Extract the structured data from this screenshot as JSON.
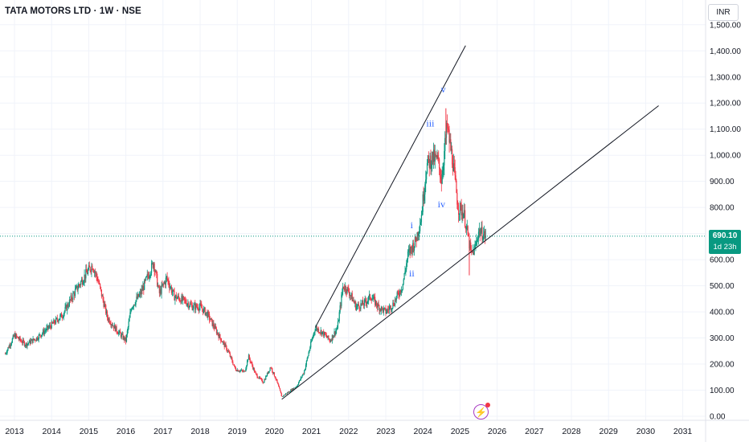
{
  "header": {
    "title": "TATA MOTORS LTD · 1W · NSE",
    "currency": "INR"
  },
  "price_tag": {
    "price": "690.10",
    "countdown": "1d 23h",
    "color": "#089981"
  },
  "colors": {
    "up": "#089981",
    "down": "#f23645",
    "wave_label": "#2962ff",
    "trendline": "#131722",
    "grid": "#f0f3fa",
    "axis_text": "#131722"
  },
  "icons": {
    "flash": "lightning-bolt-icon"
  },
  "chart_data": {
    "type": "candlestick",
    "title": "TATA MOTORS LTD · 1W · NSE",
    "xlabel": "",
    "ylabel": "",
    "y_unit": "INR",
    "ylim": [
      0,
      1550
    ],
    "xlim": [
      2012.75,
      2031.7
    ],
    "grid": true,
    "y_ticks": [
      "0.00",
      "100.00",
      "200.00",
      "300.00",
      "400.00",
      "500.00",
      "600.00",
      "700.00",
      "800.00",
      "900.00",
      "1,000.00",
      "1,100.00",
      "1,200.00",
      "1,300.00",
      "1,400.00",
      "1,500.00"
    ],
    "y_tick_values": [
      0,
      100,
      200,
      300,
      400,
      500,
      600,
      700,
      800,
      900,
      1000,
      1100,
      1200,
      1300,
      1400,
      1500
    ],
    "x_ticks": [
      "2013",
      "2014",
      "2015",
      "2016",
      "2017",
      "2018",
      "2019",
      "2020",
      "2021",
      "2022",
      "2023",
      "2024",
      "2025",
      "2026",
      "2027",
      "2028",
      "2029",
      "2030",
      "2031"
    ],
    "x_tick_values": [
      2013,
      2014,
      2015,
      2016,
      2017,
      2018,
      2019,
      2020,
      2021,
      2022,
      2023,
      2024,
      2025,
      2026,
      2027,
      2028,
      2029,
      2030,
      2031
    ],
    "current_price": 690.1,
    "price_path": [
      [
        2012.75,
        240
      ],
      [
        2013.0,
        310
      ],
      [
        2013.3,
        275
      ],
      [
        2013.6,
        300
      ],
      [
        2014.0,
        350
      ],
      [
        2014.3,
        390
      ],
      [
        2014.6,
        470
      ],
      [
        2014.9,
        540
      ],
      [
        2015.1,
        580
      ],
      [
        2015.25,
        520
      ],
      [
        2015.5,
        380
      ],
      [
        2015.75,
        330
      ],
      [
        2016.0,
        290
      ],
      [
        2016.15,
        420
      ],
      [
        2016.4,
        470
      ],
      [
        2016.6,
        540
      ],
      [
        2016.75,
        590
      ],
      [
        2016.9,
        470
      ],
      [
        2017.1,
        530
      ],
      [
        2017.3,
        460
      ],
      [
        2017.6,
        440
      ],
      [
        2017.8,
        420
      ],
      [
        2018.0,
        420
      ],
      [
        2018.2,
        390
      ],
      [
        2018.5,
        310
      ],
      [
        2018.75,
        250
      ],
      [
        2018.95,
        180
      ],
      [
        2019.2,
        170
      ],
      [
        2019.3,
        230
      ],
      [
        2019.5,
        160
      ],
      [
        2019.7,
        130
      ],
      [
        2019.9,
        190
      ],
      [
        2020.05,
        140
      ],
      [
        2020.2,
        75
      ],
      [
        2020.4,
        95
      ],
      [
        2020.6,
        115
      ],
      [
        2020.8,
        170
      ],
      [
        2020.95,
        260
      ],
      [
        2021.1,
        340
      ],
      [
        2021.3,
        320
      ],
      [
        2021.5,
        290
      ],
      [
        2021.7,
        340
      ],
      [
        2021.85,
        500
      ],
      [
        2022.0,
        480
      ],
      [
        2022.2,
        420
      ],
      [
        2022.4,
        430
      ],
      [
        2022.6,
        460
      ],
      [
        2022.8,
        420
      ],
      [
        2023.0,
        400
      ],
      [
        2023.2,
        430
      ],
      [
        2023.45,
        500
      ],
      [
        2023.6,
        620
      ],
      [
        2023.8,
        670
      ],
      [
        2023.95,
        760
      ],
      [
        2024.1,
        960
      ],
      [
        2024.25,
        990
      ],
      [
        2024.4,
        980
      ],
      [
        2024.5,
        910
      ],
      [
        2024.65,
        1110
      ],
      [
        2024.8,
        980
      ],
      [
        2024.95,
        800
      ],
      [
        2025.1,
        780
      ],
      [
        2025.2,
        700
      ],
      [
        2025.3,
        620
      ],
      [
        2025.4,
        640
      ],
      [
        2025.5,
        710
      ],
      [
        2025.6,
        700
      ],
      [
        2025.7,
        690
      ]
    ],
    "notable_wicks": [
      {
        "x": 2024.62,
        "high": 1180,
        "low": 1040
      },
      {
        "x": 2025.25,
        "high": 680,
        "low": 540
      }
    ],
    "annotations": [
      {
        "label": "i",
        "x": 2023.7,
        "y": 720
      },
      {
        "label": "ii",
        "x": 2023.7,
        "y": 535
      },
      {
        "label": "iii",
        "x": 2024.2,
        "y": 1110
      },
      {
        "label": "iv",
        "x": 2024.5,
        "y": 800
      },
      {
        "label": "v",
        "x": 2024.55,
        "y": 1240
      }
    ],
    "trendlines": [
      {
        "from": [
          2020.2,
          65
        ],
        "to": [
          2030.35,
          1190
        ]
      },
      {
        "from": [
          2021.1,
          340
        ],
        "to": [
          2025.15,
          1420
        ]
      }
    ]
  }
}
